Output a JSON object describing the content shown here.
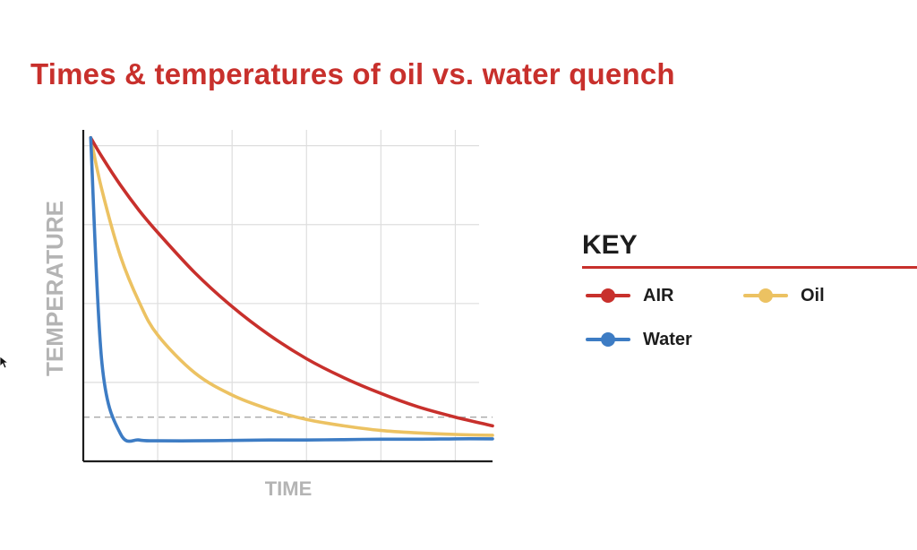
{
  "page": {
    "title": "Times & temperatures of oil vs. water quench"
  },
  "key": {
    "title": "KEY",
    "items": [
      {
        "label": "AIR",
        "color": "#c8302c"
      },
      {
        "label": "Oil",
        "color": "#ecc262"
      },
      {
        "label": "Water",
        "color": "#3d7cc4"
      }
    ]
  },
  "chart_data": {
    "type": "line",
    "title": "Times & temperatures of oil vs. water quench",
    "xlabel": "TIME",
    "ylabel": "TEMPERATURE",
    "xlim": [
      0,
      5.5
    ],
    "ylim": [
      0,
      4.2
    ],
    "grid": true,
    "legend": "right",
    "reference_line": {
      "y": 0.56,
      "style": "dashed"
    },
    "x": [
      0.1,
      0.25,
      0.5,
      0.75,
      1.0,
      1.5,
      2.0,
      2.5,
      3.0,
      3.5,
      4.0,
      4.5,
      5.0,
      5.5
    ],
    "series": [
      {
        "name": "AIR",
        "color": "#c8302c",
        "values": [
          4.1,
          3.86,
          3.5,
          3.18,
          2.9,
          2.39,
          1.96,
          1.6,
          1.3,
          1.06,
          0.86,
          0.69,
          0.56,
          0.45
        ]
      },
      {
        "name": "Oil",
        "color": "#ecc262",
        "values": [
          4.1,
          3.44,
          2.6,
          2.02,
          1.6,
          1.12,
          0.84,
          0.66,
          0.53,
          0.45,
          0.39,
          0.36,
          0.34,
          0.33
        ]
      },
      {
        "name": "Water",
        "color": "#3d7cc4",
        "values": [
          4.1,
          1.25,
          0.35,
          0.27,
          0.26,
          0.26,
          0.265,
          0.27,
          0.27,
          0.275,
          0.28,
          0.28,
          0.285,
          0.285
        ]
      }
    ]
  }
}
